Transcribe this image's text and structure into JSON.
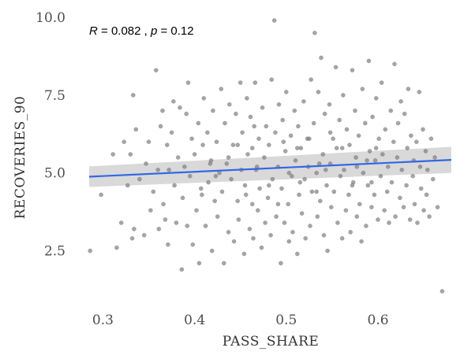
{
  "chart_data": {
    "type": "scatter",
    "title": "",
    "xlabel": "PASS_SHARE",
    "ylabel": "RECOVERIES_90",
    "xlim": [
      0.285,
      0.68
    ],
    "ylim": [
      1.2,
      10.0
    ],
    "xticks": [
      0.3,
      0.4,
      0.5,
      0.6
    ],
    "xtick_labels": [
      "0.3",
      "0.4",
      "0.5",
      "0.6"
    ],
    "yticks": [
      2.5,
      5.0,
      7.5,
      10.0
    ],
    "ytick_labels": [
      "2.5",
      "5.0",
      "7.5",
      "10.0"
    ],
    "grid": false,
    "annotation": {
      "r_symbol": "R",
      "r_value": " = 0.082 , ",
      "p_symbol": "p",
      "p_value": " = 0.12"
    },
    "regression": {
      "x": [
        0.285,
        0.68
      ],
      "y": [
        4.88,
        5.42
      ],
      "ci_start": [
        4.55,
        5.21
      ],
      "ci_end": [
        5.0,
        5.84
      ]
    },
    "colors": {
      "points": "#7f7f7f",
      "line": "#3366e6",
      "ribbon": "#cccccc"
    },
    "points": [
      [
        0.286,
        2.5
      ],
      [
        0.298,
        4.3
      ],
      [
        0.311,
        5.6
      ],
      [
        0.315,
        2.6
      ],
      [
        0.32,
        3.4
      ],
      [
        0.323,
        6.0
      ],
      [
        0.327,
        4.6
      ],
      [
        0.33,
        5.6
      ],
      [
        0.332,
        2.9
      ],
      [
        0.333,
        7.5
      ],
      [
        0.334,
        3.2
      ],
      [
        0.336,
        6.4
      ],
      [
        0.34,
        4.8
      ],
      [
        0.345,
        3.0
      ],
      [
        0.347,
        5.3
      ],
      [
        0.35,
        6.0
      ],
      [
        0.352,
        3.8
      ],
      [
        0.355,
        4.4
      ],
      [
        0.358,
        8.3
      ],
      [
        0.36,
        5.1
      ],
      [
        0.361,
        3.2
      ],
      [
        0.363,
        6.5
      ],
      [
        0.365,
        7.0
      ],
      [
        0.366,
        4.0
      ],
      [
        0.368,
        3.5
      ],
      [
        0.37,
        5.9
      ],
      [
        0.371,
        2.7
      ],
      [
        0.372,
        5.1
      ],
      [
        0.375,
        6.3
      ],
      [
        0.377,
        7.3
      ],
      [
        0.378,
        4.6
      ],
      [
        0.38,
        3.4
      ],
      [
        0.382,
        5.5
      ],
      [
        0.384,
        7.1
      ],
      [
        0.386,
        1.9
      ],
      [
        0.387,
        4.2
      ],
      [
        0.389,
        5.2
      ],
      [
        0.391,
        6.9
      ],
      [
        0.392,
        3.3
      ],
      [
        0.393,
        7.9
      ],
      [
        0.395,
        4.9
      ],
      [
        0.397,
        6.1
      ],
      [
        0.398,
        2.7
      ],
      [
        0.4,
        5.6
      ],
      [
        0.402,
        3.8
      ],
      [
        0.404,
        6.6
      ],
      [
        0.405,
        2.1
      ],
      [
        0.407,
        4.5
      ],
      [
        0.409,
        5.9
      ],
      [
        0.41,
        7.4
      ],
      [
        0.412,
        3.3
      ],
      [
        0.414,
        6.3
      ],
      [
        0.415,
        4.7
      ],
      [
        0.417,
        5.3
      ],
      [
        0.419,
        2.5
      ],
      [
        0.42,
        7.0
      ],
      [
        0.422,
        4.1
      ],
      [
        0.424,
        6.0
      ],
      [
        0.425,
        3.6
      ],
      [
        0.427,
        5.0
      ],
      [
        0.429,
        7.7
      ],
      [
        0.43,
        4.4
      ],
      [
        0.432,
        2.1
      ],
      [
        0.433,
        6.6
      ],
      [
        0.435,
        5.3
      ],
      [
        0.437,
        3.1
      ],
      [
        0.438,
        7.2
      ],
      [
        0.44,
        4.8
      ],
      [
        0.442,
        5.9
      ],
      [
        0.443,
        2.8
      ],
      [
        0.445,
        6.9
      ],
      [
        0.447,
        4.1
      ],
      [
        0.448,
        3.5
      ],
      [
        0.45,
        7.9
      ],
      [
        0.451,
        5.1
      ],
      [
        0.452,
        6.3
      ],
      [
        0.454,
        2.4
      ],
      [
        0.455,
        4.6
      ],
      [
        0.457,
        7.4
      ],
      [
        0.458,
        5.6
      ],
      [
        0.46,
        3.2
      ],
      [
        0.461,
        6.8
      ],
      [
        0.463,
        4.0
      ],
      [
        0.464,
        2.9
      ],
      [
        0.466,
        7.9
      ],
      [
        0.467,
        5.1
      ],
      [
        0.469,
        3.8
      ],
      [
        0.47,
        6.1
      ],
      [
        0.471,
        4.5
      ],
      [
        0.473,
        2.6
      ],
      [
        0.474,
        7.1
      ],
      [
        0.476,
        5.5
      ],
      [
        0.477,
        3.4
      ],
      [
        0.478,
        6.5
      ],
      [
        0.48,
        4.2
      ],
      [
        0.481,
        5.9
      ],
      [
        0.483,
        3.0
      ],
      [
        0.484,
        8.0
      ],
      [
        0.485,
        4.8
      ],
      [
        0.487,
        9.9
      ],
      [
        0.488,
        6.3
      ],
      [
        0.489,
        3.6
      ],
      [
        0.491,
        5.2
      ],
      [
        0.492,
        7.2
      ],
      [
        0.494,
        2.1
      ],
      [
        0.495,
        4.5
      ],
      [
        0.496,
        6.7
      ],
      [
        0.498,
        3.4
      ],
      [
        0.499,
        5.7
      ],
      [
        0.5,
        7.6
      ],
      [
        0.502,
        4.0
      ],
      [
        0.503,
        2.8
      ],
      [
        0.505,
        6.2
      ],
      [
        0.506,
        4.9
      ],
      [
        0.507,
        3.1
      ],
      [
        0.509,
        7.0
      ],
      [
        0.51,
        5.4
      ],
      [
        0.512,
        2.4
      ],
      [
        0.513,
        6.5
      ],
      [
        0.514,
        4.3
      ],
      [
        0.516,
        5.8
      ],
      [
        0.517,
        3.7
      ],
      [
        0.519,
        7.3
      ],
      [
        0.52,
        4.8
      ],
      [
        0.521,
        2.9
      ],
      [
        0.523,
        6.1
      ],
      [
        0.524,
        5.2
      ],
      [
        0.526,
        3.3
      ],
      [
        0.527,
        8.0
      ],
      [
        0.528,
        4.4
      ],
      [
        0.53,
        6.6
      ],
      [
        0.531,
        9.5
      ],
      [
        0.533,
        5.0
      ],
      [
        0.534,
        3.6
      ],
      [
        0.535,
        7.6
      ],
      [
        0.537,
        4.1
      ],
      [
        0.538,
        8.7
      ],
      [
        0.54,
        5.6
      ],
      [
        0.541,
        3.0
      ],
      [
        0.542,
        6.9
      ],
      [
        0.544,
        4.6
      ],
      [
        0.545,
        2.5
      ],
      [
        0.547,
        7.2
      ],
      [
        0.548,
        5.3
      ],
      [
        0.549,
        3.9
      ],
      [
        0.551,
        6.1
      ],
      [
        0.552,
        4.4
      ],
      [
        0.554,
        8.4
      ],
      [
        0.555,
        5.8
      ],
      [
        0.556,
        3.4
      ],
      [
        0.558,
        6.7
      ],
      [
        0.559,
        4.9
      ],
      [
        0.561,
        2.9
      ],
      [
        0.562,
        7.5
      ],
      [
        0.563,
        5.1
      ],
      [
        0.565,
        3.8
      ],
      [
        0.566,
        6.4
      ],
      [
        0.568,
        4.3
      ],
      [
        0.569,
        5.9
      ],
      [
        0.57,
        3.1
      ],
      [
        0.572,
        8.3
      ],
      [
        0.573,
        4.7
      ],
      [
        0.575,
        7.0
      ],
      [
        0.576,
        5.5
      ],
      [
        0.577,
        3.6
      ],
      [
        0.579,
        6.2
      ],
      [
        0.58,
        4.0
      ],
      [
        0.582,
        2.8
      ],
      [
        0.583,
        7.7
      ],
      [
        0.584,
        5.0
      ],
      [
        0.586,
        6.6
      ],
      [
        0.587,
        3.3
      ],
      [
        0.589,
        4.6
      ],
      [
        0.59,
        8.6
      ],
      [
        0.591,
        5.7
      ],
      [
        0.593,
        3.9
      ],
      [
        0.594,
        6.8
      ],
      [
        0.596,
        4.3
      ],
      [
        0.597,
        5.4
      ],
      [
        0.598,
        7.4
      ],
      [
        0.6,
        3.5
      ],
      [
        0.601,
        6.1
      ],
      [
        0.603,
        4.9
      ],
      [
        0.604,
        7.9
      ],
      [
        0.605,
        5.6
      ],
      [
        0.607,
        3.8
      ],
      [
        0.608,
        6.4
      ],
      [
        0.61,
        4.4
      ],
      [
        0.611,
        5.2
      ],
      [
        0.612,
        3.4
      ],
      [
        0.614,
        7.0
      ],
      [
        0.615,
        4.7
      ],
      [
        0.617,
        6.0
      ],
      [
        0.618,
        8.5
      ],
      [
        0.619,
        3.6
      ],
      [
        0.621,
        5.5
      ],
      [
        0.622,
        6.6
      ],
      [
        0.624,
        4.2
      ],
      [
        0.625,
        7.3
      ],
      [
        0.626,
        5.1
      ],
      [
        0.628,
        3.9
      ],
      [
        0.629,
        6.9
      ],
      [
        0.631,
        4.6
      ],
      [
        0.632,
        5.8
      ],
      [
        0.633,
        7.7
      ],
      [
        0.635,
        3.5
      ],
      [
        0.636,
        6.2
      ],
      [
        0.638,
        4.9
      ],
      [
        0.639,
        5.4
      ],
      [
        0.64,
        4.0
      ],
      [
        0.642,
        6.0
      ],
      [
        0.643,
        3.4
      ],
      [
        0.645,
        7.6
      ],
      [
        0.646,
        5.2
      ],
      [
        0.647,
        4.5
      ],
      [
        0.649,
        6.4
      ],
      [
        0.65,
        3.8
      ],
      [
        0.652,
        5.7
      ],
      [
        0.653,
        4.3
      ],
      [
        0.654,
        5.1
      ],
      [
        0.656,
        3.6
      ],
      [
        0.658,
        6.1
      ],
      [
        0.66,
        4.8
      ],
      [
        0.662,
        5.5
      ],
      [
        0.665,
        3.9
      ],
      [
        0.67,
        1.2
      ],
      [
        0.548,
        6.3
      ],
      [
        0.468,
        5.2
      ],
      [
        0.512,
        5.8
      ],
      [
        0.437,
        5.5
      ],
      [
        0.423,
        4.9
      ],
      [
        0.503,
        5.0
      ],
      [
        0.577,
        5.2
      ],
      [
        0.593,
        4.7
      ],
      [
        0.456,
        4.3
      ],
      [
        0.481,
        4.6
      ],
      [
        0.533,
        4.4
      ],
      [
        0.561,
        5.8
      ],
      [
        0.588,
        5.4
      ],
      [
        0.447,
        5.9
      ],
      [
        0.497,
        6.0
      ],
      [
        0.525,
        6.1
      ],
      [
        0.543,
        5.1
      ],
      [
        0.418,
        5.4
      ],
      [
        0.465,
        6.5
      ],
      [
        0.515,
        4.7
      ],
      [
        0.598,
        5.8
      ],
      [
        0.408,
        4.3
      ],
      [
        0.491,
        4.0
      ],
      [
        0.572,
        4.6
      ],
      [
        0.536,
        5.3
      ],
      [
        0.463,
        5.8
      ]
    ]
  }
}
